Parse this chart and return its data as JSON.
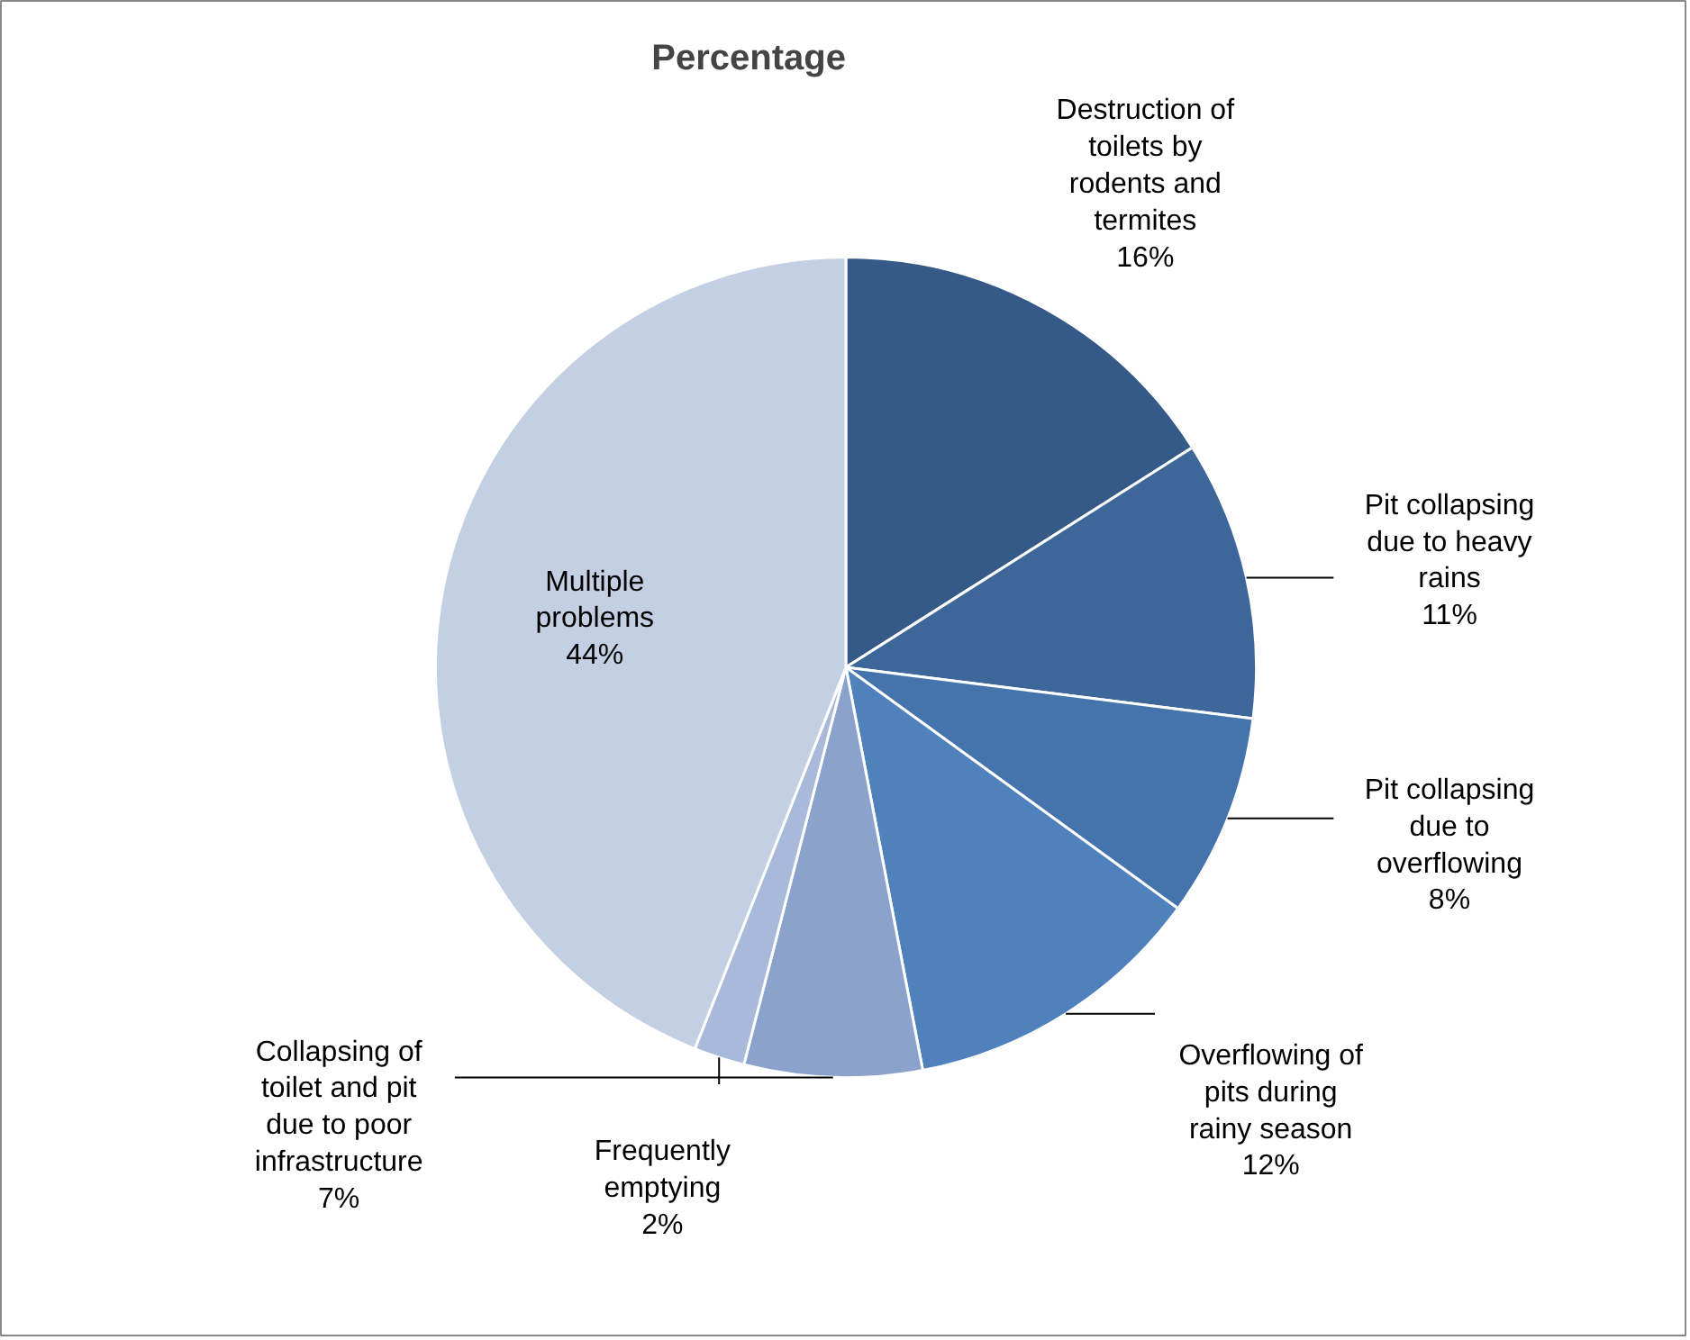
{
  "chart_data": {
    "type": "pie",
    "title": "Percentage",
    "categories": [
      "Destruction of toilets by rodents and termites",
      "Pit collapsing due to heavy rains",
      "Pit collapsing due to overflowing",
      "Overflowing of pits during rainy season",
      "Collapsing of toilet and pit due to poor infrastructure",
      "Frequently emptying",
      "Multiple problems"
    ],
    "values": [
      16,
      11,
      8,
      12,
      7,
      2,
      44
    ],
    "value_labels": [
      "16%",
      "11%",
      "8%",
      "12%",
      "7%",
      "2%",
      "44%"
    ],
    "colors": [
      "#355a87",
      "#3d6699",
      "#4574ad",
      "#4f81bd",
      "#8aa2cc",
      "#a9b9d9",
      "#c3cfe2"
    ]
  }
}
